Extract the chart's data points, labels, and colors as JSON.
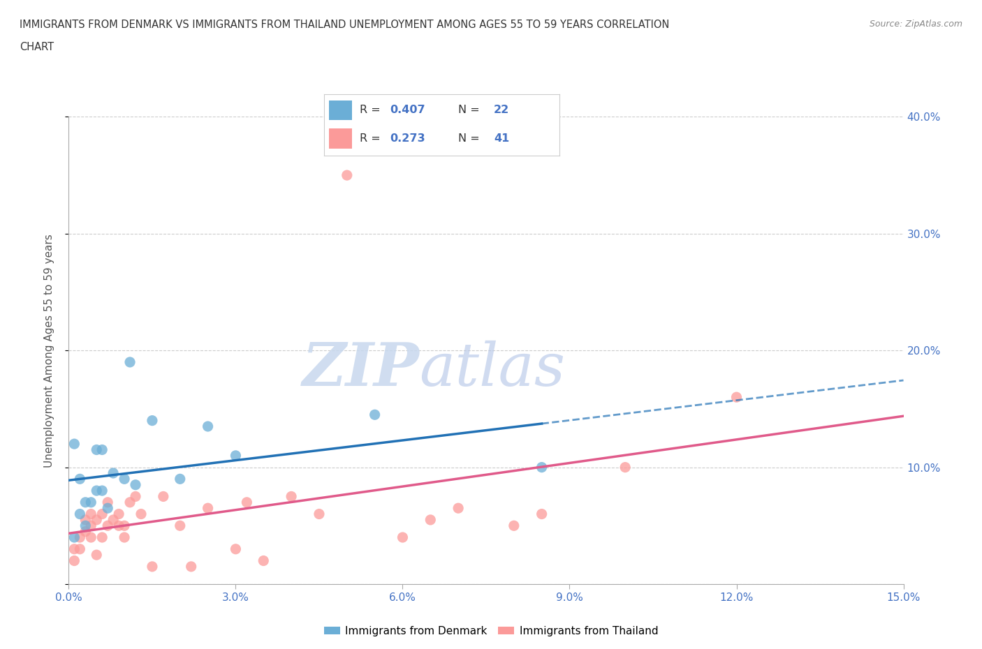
{
  "title_line1": "IMMIGRANTS FROM DENMARK VS IMMIGRANTS FROM THAILAND UNEMPLOYMENT AMONG AGES 55 TO 59 YEARS CORRELATION",
  "title_line2": "CHART",
  "source": "Source: ZipAtlas.com",
  "ylabel": "Unemployment Among Ages 55 to 59 years",
  "xlim": [
    0.0,
    0.15
  ],
  "ylim": [
    0.0,
    0.4
  ],
  "xticks": [
    0.0,
    0.03,
    0.06,
    0.09,
    0.12,
    0.15
  ],
  "xticklabels": [
    "0.0%",
    "3.0%",
    "6.0%",
    "9.0%",
    "12.0%",
    "15.0%"
  ],
  "yticks": [
    0.0,
    0.1,
    0.2,
    0.3,
    0.4
  ],
  "yticklabels": [
    "",
    "10.0%",
    "20.0%",
    "30.0%",
    "40.0%"
  ],
  "denmark_color": "#6baed6",
  "denmark_line_color": "#2171b5",
  "thailand_color": "#fb9a99",
  "thailand_line_color": "#e05a8a",
  "denmark_R": 0.407,
  "denmark_N": 22,
  "thailand_R": 0.273,
  "thailand_N": 41,
  "denmark_x": [
    0.001,
    0.001,
    0.002,
    0.002,
    0.003,
    0.003,
    0.004,
    0.005,
    0.005,
    0.006,
    0.006,
    0.007,
    0.008,
    0.01,
    0.011,
    0.012,
    0.015,
    0.02,
    0.025,
    0.03,
    0.055,
    0.085
  ],
  "denmark_y": [
    0.04,
    0.12,
    0.06,
    0.09,
    0.05,
    0.07,
    0.07,
    0.08,
    0.115,
    0.08,
    0.115,
    0.065,
    0.095,
    0.09,
    0.19,
    0.085,
    0.14,
    0.09,
    0.135,
    0.11,
    0.145,
    0.1
  ],
  "thailand_x": [
    0.001,
    0.001,
    0.002,
    0.002,
    0.003,
    0.003,
    0.004,
    0.004,
    0.004,
    0.005,
    0.005,
    0.006,
    0.006,
    0.007,
    0.007,
    0.008,
    0.009,
    0.009,
    0.01,
    0.01,
    0.011,
    0.012,
    0.013,
    0.015,
    0.017,
    0.02,
    0.022,
    0.025,
    0.03,
    0.032,
    0.035,
    0.04,
    0.045,
    0.05,
    0.06,
    0.065,
    0.07,
    0.08,
    0.085,
    0.1,
    0.12
  ],
  "thailand_y": [
    0.03,
    0.02,
    0.04,
    0.03,
    0.045,
    0.055,
    0.04,
    0.05,
    0.06,
    0.025,
    0.055,
    0.04,
    0.06,
    0.05,
    0.07,
    0.055,
    0.05,
    0.06,
    0.05,
    0.04,
    0.07,
    0.075,
    0.06,
    0.015,
    0.075,
    0.05,
    0.015,
    0.065,
    0.03,
    0.07,
    0.02,
    0.075,
    0.06,
    0.35,
    0.04,
    0.055,
    0.065,
    0.05,
    0.06,
    0.1,
    0.16
  ],
  "watermark_zip": "ZIP",
  "watermark_atlas": "atlas",
  "background_color": "#ffffff",
  "grid_color": "#cccccc",
  "legend_box_color": "#dddddd"
}
